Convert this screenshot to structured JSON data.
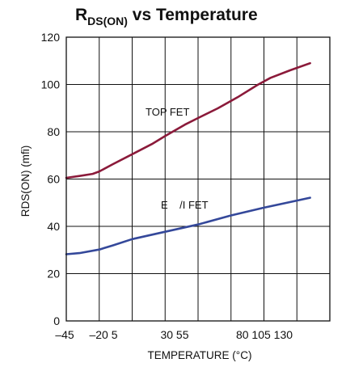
{
  "chart_data": {
    "type": "line",
    "title": {
      "main": "R",
      "subscript": "DS(ON)",
      "rest": " vs Temperature"
    },
    "xlabel": "TEMPERATURE (°C)",
    "ylabel": "RDS(ON) (mfi)",
    "xlim": [
      -45,
      155
    ],
    "ylim": [
      0,
      120
    ],
    "x_tick_labels": [
      "–45",
      "–20 5",
      "30 55",
      "80 105 130"
    ],
    "y_ticks": [
      0,
      20,
      40,
      60,
      80,
      100,
      120
    ],
    "x_gridlines": [
      -20,
      5,
      30,
      55,
      80,
      105,
      130
    ],
    "y_gridlines": [
      20,
      40,
      60,
      80,
      100
    ],
    "grid": true,
    "series": [
      {
        "name": "TOP FET",
        "color": "#8b1a3a",
        "x": [
          -45,
          -35,
          -25,
          -20,
          -10,
          5,
          20,
          30,
          45,
          55,
          70,
          85,
          100,
          110,
          125,
          140
        ],
        "y": [
          60.5,
          61.3,
          62.2,
          63.2,
          66.2,
          70.5,
          74.8,
          78.2,
          83.0,
          85.8,
          89.9,
          94.6,
          99.8,
          102.8,
          106.0,
          109.0
        ]
      },
      {
        "name": "BOTTOM FET",
        "display_label": "E    /I FET",
        "color": "#34489a",
        "x": [
          -45,
          -35,
          -20,
          -10,
          5,
          30,
          55,
          80,
          105,
          130,
          140
        ],
        "y": [
          28.2,
          28.7,
          30.2,
          31.9,
          34.6,
          37.7,
          40.8,
          44.6,
          47.9,
          50.9,
          52.1
        ]
      }
    ]
  }
}
